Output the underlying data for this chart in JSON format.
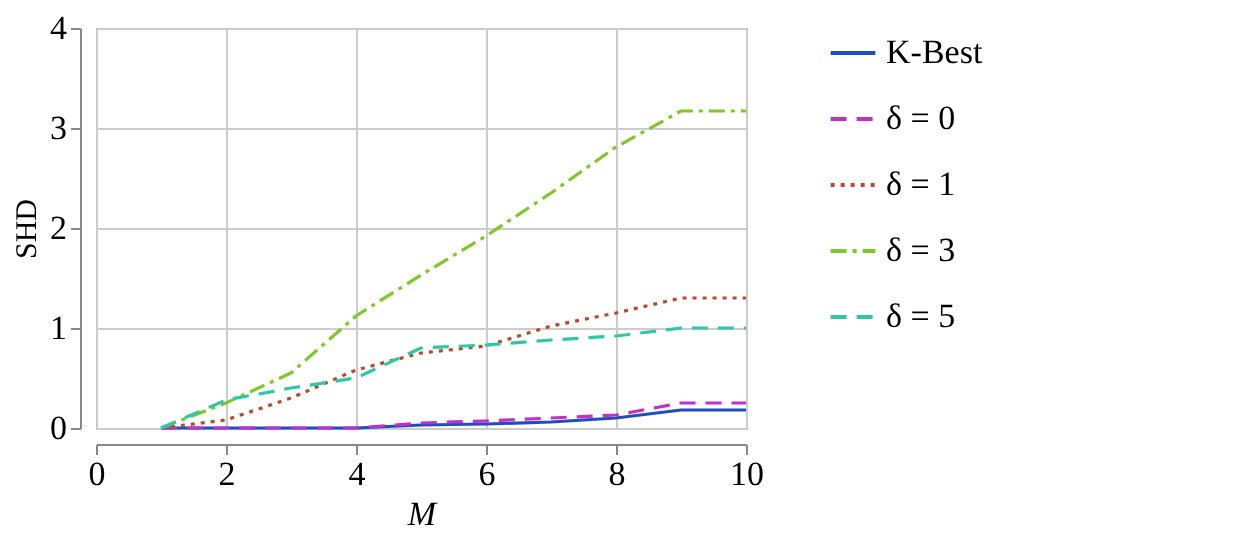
{
  "chart_data": {
    "type": "line",
    "xlabel": "M",
    "ylabel": "SHD",
    "x": [
      1,
      2,
      3,
      4,
      5,
      6,
      7,
      8,
      9,
      10
    ],
    "series": [
      {
        "name": "K-Best",
        "color": "#1f4fbf",
        "line_style": "solid",
        "values": [
          0,
          0,
          0,
          0,
          0.03,
          0.04,
          0.06,
          0.1,
          0.18,
          0.18
        ]
      },
      {
        "name": "δ = 0",
        "color": "#c030c8",
        "line_style": "dashed",
        "values": [
          0,
          0,
          0,
          0,
          0.05,
          0.07,
          0.1,
          0.13,
          0.25,
          0.25
        ]
      },
      {
        "name": "δ = 1",
        "color": "#b84a2a",
        "line_style": "dotted",
        "values": [
          0,
          0.08,
          0.3,
          0.58,
          0.75,
          0.82,
          1.02,
          1.15,
          1.3,
          1.3
        ]
      },
      {
        "name": "δ = 3",
        "color": "#7ec82a",
        "line_style": "dashdot",
        "values": [
          0,
          0.25,
          0.55,
          1.12,
          1.53,
          1.92,
          2.35,
          2.81,
          3.17,
          3.17
        ]
      },
      {
        "name": "δ = 5",
        "color": "#2ec8a8",
        "line_style": "dashed",
        "values": [
          0,
          0.28,
          0.4,
          0.5,
          0.8,
          0.83,
          0.88,
          0.92,
          1.0,
          1.0
        ]
      }
    ],
    "xlim": [
      0,
      10
    ],
    "xticks": [
      0,
      2,
      4,
      6,
      8,
      10
    ],
    "ylim": [
      0,
      4
    ],
    "yticks": [
      0,
      1,
      2,
      3,
      4
    ],
    "grid": true,
    "legend": "right",
    "marker": "none"
  }
}
